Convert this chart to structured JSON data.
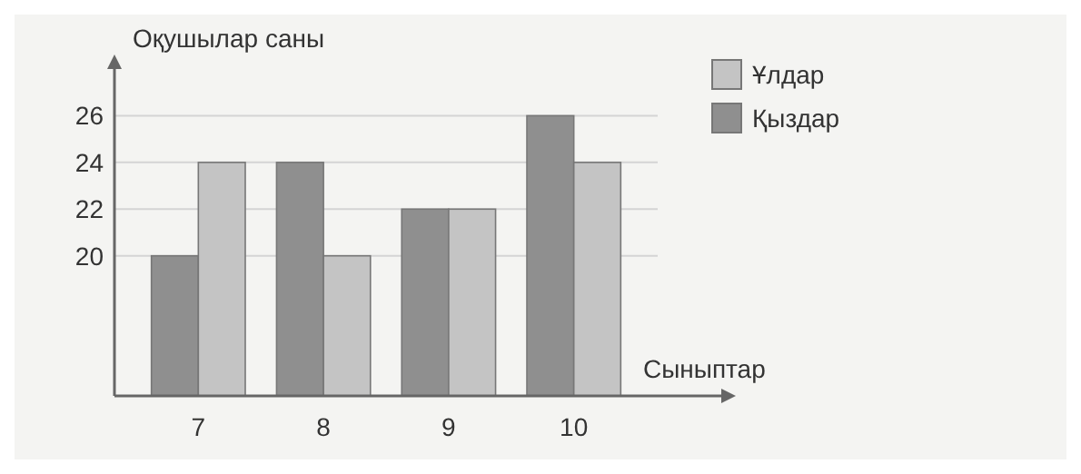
{
  "chart_data": {
    "type": "bar",
    "xlabel": "Сыныптар",
    "ylabel": "Оқушылар саны",
    "categories": [
      "7",
      "8",
      "9",
      "10"
    ],
    "series": [
      {
        "name": "Қыздар",
        "color": "#8f8f8f",
        "values": [
          20,
          24,
          22,
          26
        ]
      },
      {
        "name": "Ұлдар",
        "color": "#c4c4c4",
        "values": [
          24,
          20,
          22,
          24
        ]
      }
    ],
    "ylim": [
      14,
      28
    ],
    "yticks": [
      20,
      22,
      24,
      26
    ],
    "grid": "y",
    "legend": "top right"
  }
}
